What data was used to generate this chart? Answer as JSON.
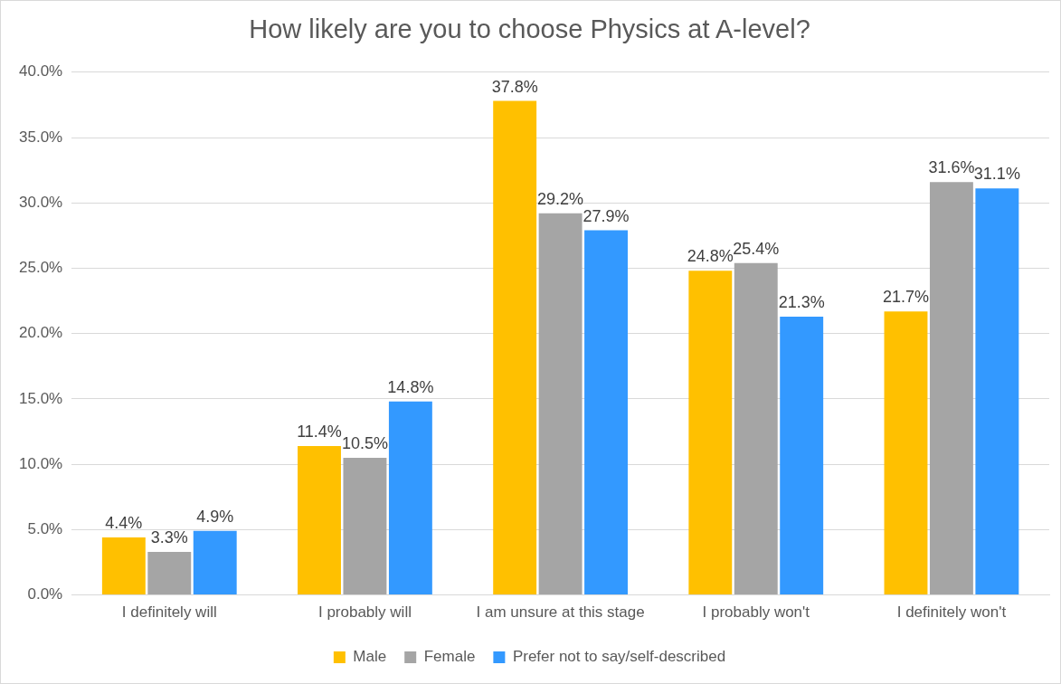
{
  "chart_data": {
    "type": "bar",
    "title": "How likely are you to choose Physics at A-level?",
    "categories": [
      "I definitely will",
      "I probably will",
      "I am unsure at this stage",
      "I probably won't",
      "I definitely won't"
    ],
    "series": [
      {
        "name": "Male",
        "color": "#ffc000",
        "values": [
          4.4,
          11.4,
          37.8,
          24.8,
          21.7
        ],
        "value_labels": [
          "4.4%",
          "11.4%",
          "37.8%",
          "24.8%",
          "21.7%"
        ]
      },
      {
        "name": "Female",
        "color": "#a5a5a5",
        "values": [
          3.3,
          10.5,
          29.2,
          25.4,
          31.6
        ],
        "value_labels": [
          "3.3%",
          "10.5%",
          "29.2%",
          "25.4%",
          "31.6%"
        ]
      },
      {
        "name": "Prefer not to say/self-described",
        "color": "#3399ff",
        "values": [
          4.9,
          14.8,
          27.9,
          21.3,
          31.1
        ],
        "value_labels": [
          "4.9%",
          "14.8%",
          "27.9%",
          "21.3%",
          "31.1%"
        ]
      }
    ],
    "ylim": [
      0,
      40
    ],
    "yticks": [
      {
        "value": 0,
        "label": "0.0%"
      },
      {
        "value": 5,
        "label": "5.0%"
      },
      {
        "value": 10,
        "label": "10.0%"
      },
      {
        "value": 15,
        "label": "15.0%"
      },
      {
        "value": 20,
        "label": "20.0%"
      },
      {
        "value": 25,
        "label": "25.0%"
      },
      {
        "value": 30,
        "label": "30.0%"
      },
      {
        "value": 35,
        "label": "35.0%"
      },
      {
        "value": 40,
        "label": "40.0%"
      }
    ],
    "grid": "y",
    "legend": "bottom"
  }
}
